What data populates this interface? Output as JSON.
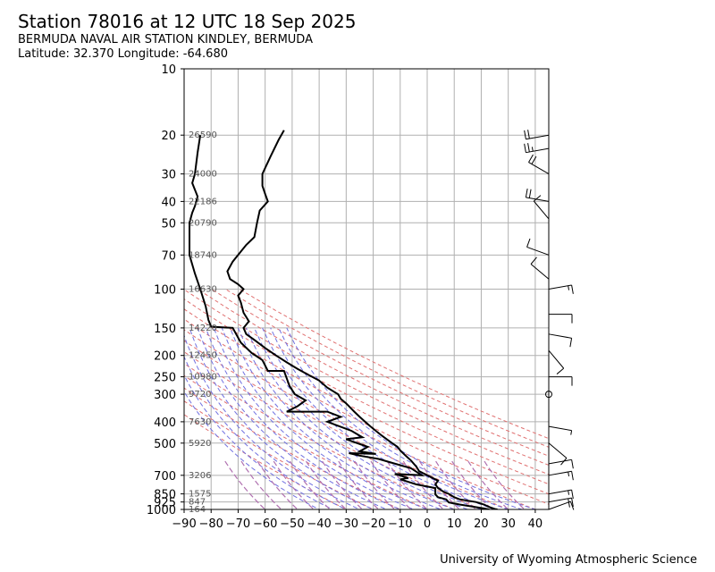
{
  "header": {
    "title": "Station 78016 at 12 UTC 18 Sep 2025",
    "station_name": "BERMUDA NAVAL AIR STATION KINDLEY, BERMUDA",
    "coordinates": "Latitude: 32.370 Longitude: -64.680"
  },
  "footer": {
    "credit": "University of Wyoming Atmospheric Science"
  },
  "chart_data": {
    "type": "line",
    "title": "Station 78016 at 12 UTC 18 Sep 2025",
    "xlabel": "",
    "ylabel": "",
    "xlim": [
      -90,
      45
    ],
    "ylim": [
      1000,
      10
    ],
    "y_scale": "log",
    "grid": true,
    "x_ticks": [
      -90,
      -80,
      -70,
      -60,
      -50,
      -40,
      -30,
      -20,
      -10,
      0,
      10,
      20,
      30,
      40
    ],
    "y_ticks": [
      10,
      20,
      30,
      40,
      50,
      70,
      100,
      150,
      200,
      250,
      300,
      400,
      500,
      700,
      850,
      925,
      1000
    ],
    "height_labels": [
      {
        "p": 20,
        "text": "26590"
      },
      {
        "p": 30,
        "text": "24000"
      },
      {
        "p": 40,
        "text": "22186"
      },
      {
        "p": 50,
        "text": "20790"
      },
      {
        "p": 70,
        "text": "18740"
      },
      {
        "p": 100,
        "text": "16630"
      },
      {
        "p": 150,
        "text": "14220"
      },
      {
        "p": 200,
        "text": "12450"
      },
      {
        "p": 250,
        "text": "10980"
      },
      {
        "p": 300,
        "text": "9720"
      },
      {
        "p": 400,
        "text": "7630"
      },
      {
        "p": 500,
        "text": "5920"
      },
      {
        "p": 700,
        "text": "3206"
      },
      {
        "p": 850,
        "text": "1575"
      },
      {
        "p": 925,
        "text": "847"
      },
      {
        "p": 1000,
        "text": "164"
      }
    ],
    "series": [
      {
        "color": "#000000",
        "points": [
          [
            26,
            1000
          ],
          [
            25,
            995
          ],
          [
            23,
            975
          ],
          [
            21,
            950
          ],
          [
            18,
            925
          ],
          [
            12,
            900
          ],
          [
            10,
            880
          ],
          [
            8,
            850
          ],
          [
            6,
            830
          ],
          [
            4,
            800
          ],
          [
            3,
            770
          ],
          [
            4,
            740
          ],
          [
            2,
            720
          ],
          [
            0,
            700
          ],
          [
            -3,
            670
          ],
          [
            -4,
            640
          ],
          [
            -6,
            600
          ],
          [
            -8,
            570
          ],
          [
            -10,
            540
          ],
          [
            -11,
            520
          ],
          [
            -13,
            500
          ],
          [
            -15,
            480
          ],
          [
            -17,
            460
          ],
          [
            -19,
            440
          ],
          [
            -21,
            420
          ],
          [
            -23,
            400
          ],
          [
            -25,
            380
          ],
          [
            -27,
            360
          ],
          [
            -28,
            350
          ],
          [
            -30,
            330
          ],
          [
            -32,
            315
          ],
          [
            -33,
            300
          ],
          [
            -37,
            280
          ],
          [
            -40,
            260
          ],
          [
            -44,
            245
          ],
          [
            -48,
            230
          ],
          [
            -52,
            215
          ],
          [
            -56,
            200
          ],
          [
            -60,
            185
          ],
          [
            -64,
            170
          ],
          [
            -67,
            160
          ],
          [
            -68,
            150
          ],
          [
            -66,
            140
          ],
          [
            -68,
            128
          ],
          [
            -69,
            115
          ],
          [
            -70,
            107
          ],
          [
            -68,
            100
          ],
          [
            -70,
            95
          ],
          [
            -73,
            90
          ],
          [
            -74,
            83
          ],
          [
            -72,
            75
          ],
          [
            -70,
            70
          ],
          [
            -67,
            63
          ],
          [
            -64,
            58
          ],
          [
            -63,
            50
          ],
          [
            -62,
            44
          ],
          [
            -59,
            40
          ],
          [
            -60,
            37
          ],
          [
            -61,
            34
          ],
          [
            -61,
            30
          ],
          [
            -58,
            25
          ],
          [
            -55,
            21
          ],
          [
            -53,
            19
          ]
        ]
      },
      {
        "color": "#000000",
        "points": [
          [
            23,
            1000
          ],
          [
            22,
            995
          ],
          [
            21,
            990
          ],
          [
            12,
            950
          ],
          [
            8,
            930
          ],
          [
            7,
            900
          ],
          [
            4,
            880
          ],
          [
            3,
            855
          ],
          [
            3,
            800
          ],
          [
            -4,
            770
          ],
          [
            -10,
            730
          ],
          [
            -7,
            720
          ],
          [
            -12,
            690
          ],
          [
            -2,
            700
          ],
          [
            -6,
            650
          ],
          [
            -10,
            630
          ],
          [
            -18,
            590
          ],
          [
            -25,
            570
          ],
          [
            -29,
            555
          ],
          [
            -19,
            560
          ],
          [
            -25,
            545
          ],
          [
            -22,
            520
          ],
          [
            -30,
            480
          ],
          [
            -24,
            470
          ],
          [
            -28,
            440
          ],
          [
            -37,
            400
          ],
          [
            -32,
            380
          ],
          [
            -37,
            360
          ],
          [
            -52,
            360
          ],
          [
            -48,
            340
          ],
          [
            -45,
            320
          ],
          [
            -49,
            300
          ],
          [
            -51,
            275
          ],
          [
            -53,
            235
          ],
          [
            -59,
            235
          ],
          [
            -61,
            210
          ],
          [
            -65,
            195
          ],
          [
            -69,
            175
          ],
          [
            -72,
            150
          ],
          [
            -80,
            148
          ],
          [
            -81,
            138
          ],
          [
            -82,
            120
          ],
          [
            -84,
            100
          ],
          [
            -86,
            85
          ],
          [
            -88,
            70
          ],
          [
            -88,
            60
          ],
          [
            -88,
            50
          ],
          [
            -87,
            45
          ],
          [
            -86,
            42
          ],
          [
            -85,
            38
          ],
          [
            -87,
            33
          ],
          [
            -86,
            30
          ],
          [
            -85,
            24
          ],
          [
            -84,
            20
          ]
        ]
      }
    ],
    "wind_barbs": [
      {
        "p": 20,
        "dir": 260,
        "spd": 20
      },
      {
        "p": 23,
        "dir": 260,
        "spd": 25
      },
      {
        "p": 30,
        "dir": 300,
        "spd": 20
      },
      {
        "p": 40,
        "dir": 280,
        "spd": 20
      },
      {
        "p": 48,
        "dir": 320,
        "spd": 10
      },
      {
        "p": 70,
        "dir": 290,
        "spd": 10
      },
      {
        "p": 90,
        "dir": 310,
        "spd": 10
      },
      {
        "p": 100,
        "dir": 80,
        "spd": 15
      },
      {
        "p": 130,
        "dir": 90,
        "spd": 10
      },
      {
        "p": 160,
        "dir": 100,
        "spd": 10
      },
      {
        "p": 190,
        "dir": 140,
        "spd": 10
      },
      {
        "p": 250,
        "dir": 90,
        "spd": 10
      },
      {
        "p": 300,
        "dir": 0,
        "spd": 0
      },
      {
        "p": 420,
        "dir": 100,
        "spd": 5
      },
      {
        "p": 500,
        "dir": 130,
        "spd": 10
      },
      {
        "p": 620,
        "dir": 80,
        "spd": 10
      },
      {
        "p": 700,
        "dir": 80,
        "spd": 15
      },
      {
        "p": 850,
        "dir": 80,
        "spd": 15
      },
      {
        "p": 925,
        "dir": 80,
        "spd": 20
      },
      {
        "p": 1000,
        "dir": 70,
        "spd": 10
      }
    ],
    "reference_lines": [
      {
        "name": "dry-adiabat",
        "color": "#e07070"
      },
      {
        "name": "moist-adiabat",
        "color": "#7070e0"
      },
      {
        "name": "mixing-ratio",
        "color": "#b070b0"
      }
    ]
  }
}
